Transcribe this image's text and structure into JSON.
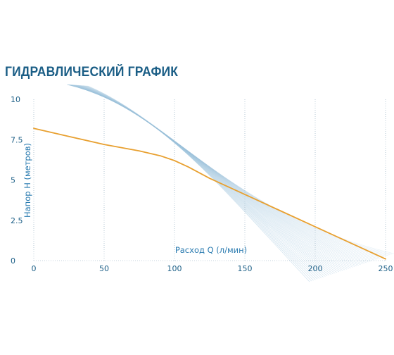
{
  "chart_data": {
    "type": "line",
    "title": "ГИДРАВЛИЧЕСКИЙ ГРАФИК",
    "xlabel": "Расход Q (л/мин)",
    "ylabel": "Напор H (метров)",
    "xlim": [
      0,
      250
    ],
    "ylim": [
      0,
      10
    ],
    "x_ticks": [
      "0",
      "50",
      "100",
      "150",
      "200",
      "250"
    ],
    "y_ticks": [
      "0",
      "2.5",
      "5",
      "7.5",
      "10"
    ],
    "grid": "vertical",
    "line_color": "#e8a030",
    "series": [
      {
        "x": [
          0,
          25,
          50,
          75,
          90,
          100,
          110,
          125,
          150,
          175,
          200,
          225,
          250
        ],
        "y": [
          8.2,
          7.7,
          7.2,
          6.8,
          6.5,
          6.2,
          5.8,
          5.1,
          4.1,
          3.1,
          2.1,
          1.1,
          0.1
        ]
      }
    ]
  }
}
